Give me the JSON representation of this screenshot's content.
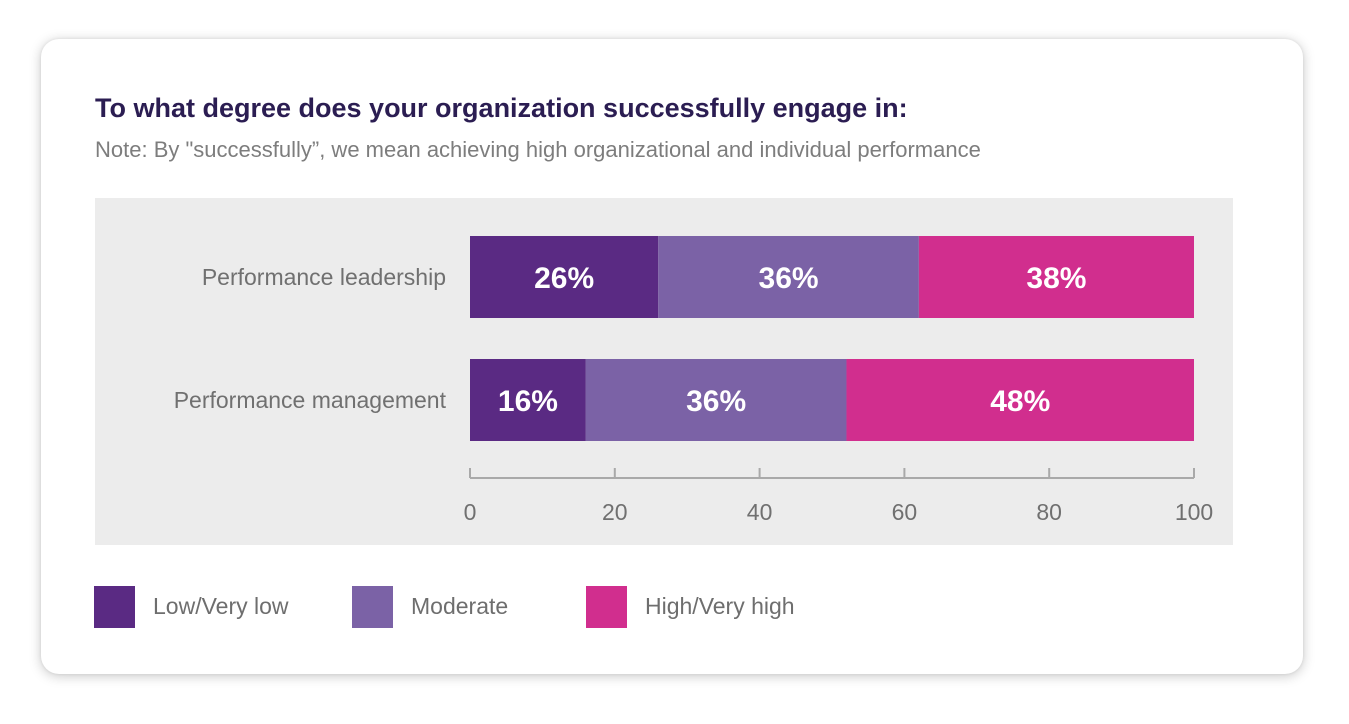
{
  "title": "To what degree does your organization successfully engage in:",
  "subtitle": "Note: By \"successfully”, we mean achieving high organizational and individual performance",
  "chart_data": {
    "type": "bar",
    "orientation": "horizontal",
    "stacked": true,
    "categories": [
      "Performance leadership",
      "Performance management"
    ],
    "series": [
      {
        "name": "Low/Very low",
        "values": [
          26,
          16
        ],
        "labels": [
          "26%",
          "16%"
        ],
        "color": "#5a2a83"
      },
      {
        "name": "Moderate",
        "values": [
          36,
          36
        ],
        "labels": [
          "36%",
          "36%"
        ],
        "color": "#7b62a6"
      },
      {
        "name": "High/Very high",
        "values": [
          38,
          48
        ],
        "labels": [
          "38%",
          "48%"
        ],
        "color": "#d12e8e"
      }
    ],
    "xlim": [
      0,
      100
    ],
    "xticks": [
      "0",
      "20",
      "40",
      "60",
      "80",
      "100"
    ],
    "grid": false,
    "legend_position": "bottom-left",
    "background": "#ececec",
    "axis_color": "#a9a9a9"
  },
  "legend": {
    "items": [
      {
        "label": "Low/Very low",
        "color": "#5a2a83"
      },
      {
        "label": "Moderate",
        "color": "#7b62a6"
      },
      {
        "label": "High/Very high",
        "color": "#d12e8e"
      }
    ]
  }
}
